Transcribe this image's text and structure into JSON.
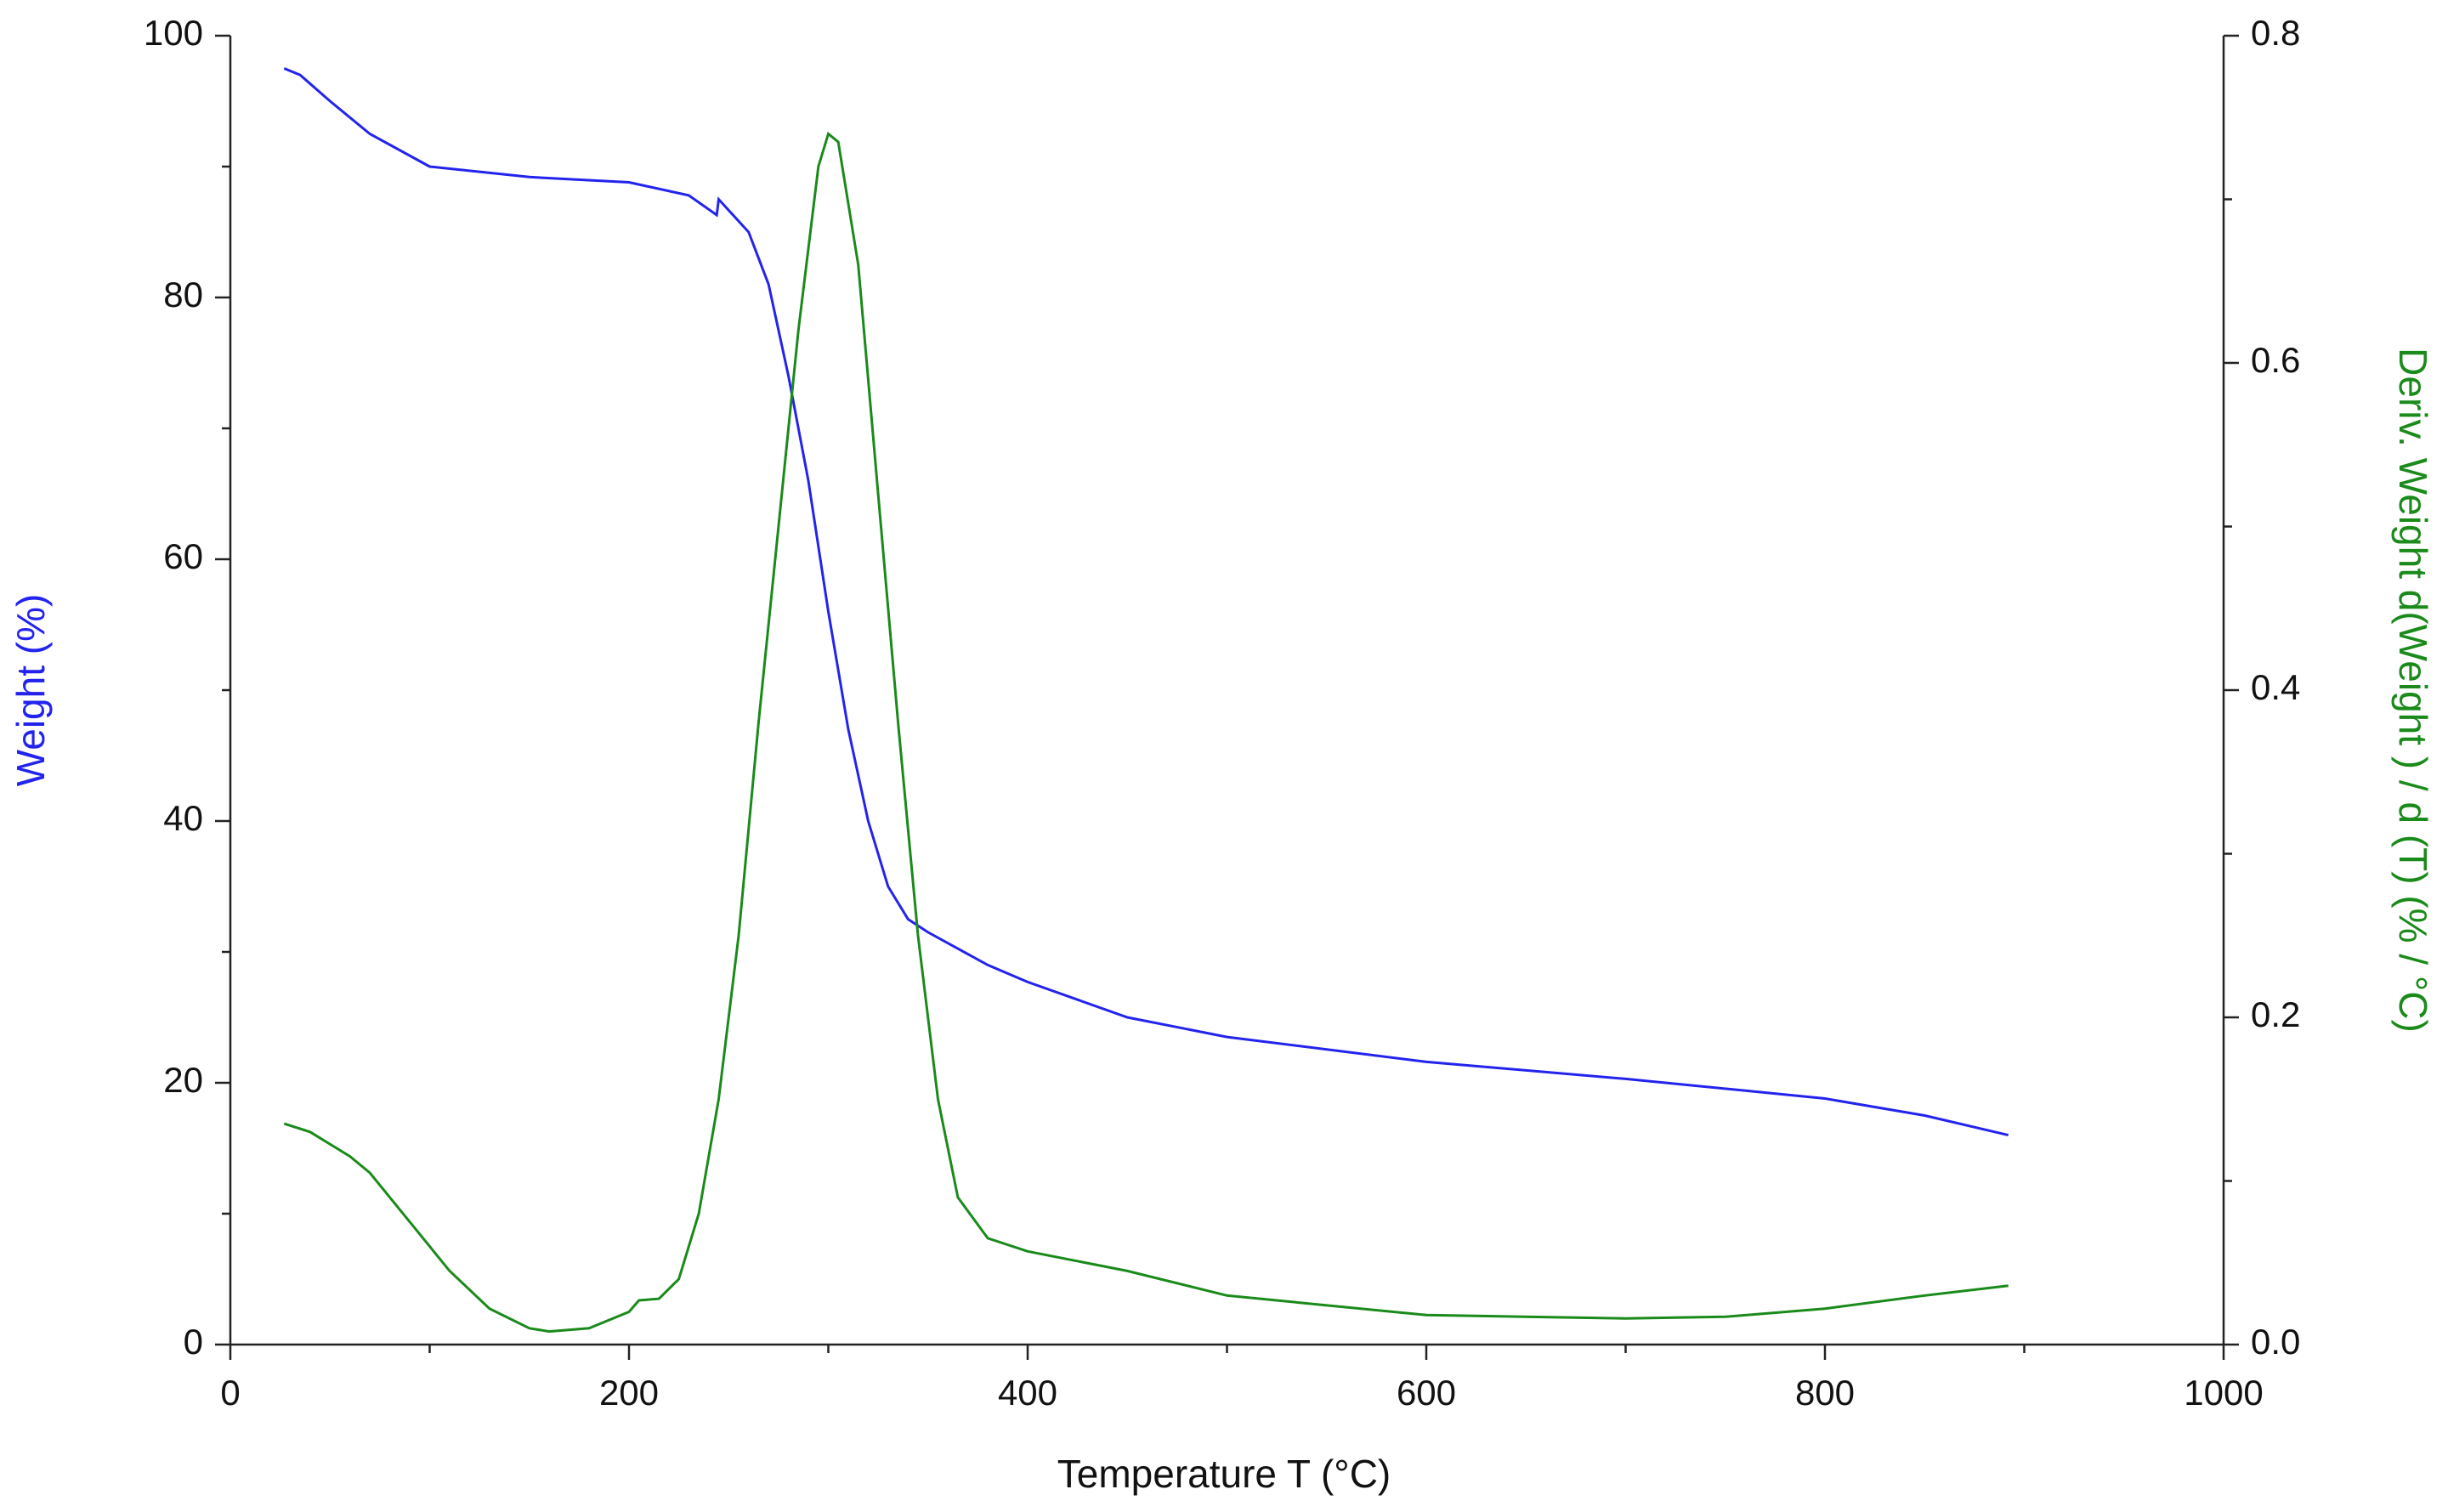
{
  "chart_data": {
    "type": "line",
    "xlabel": "Temperature  T  (°C)",
    "ylabel": "Weight  (%)",
    "y2label": "Deriv. Weight d(Weight ) / d (T)  (% / °C)",
    "xlim": [
      0,
      1000
    ],
    "xticks": [
      0,
      200,
      400,
      600,
      800,
      1000
    ],
    "xminorticks": [
      100,
      300,
      500,
      700,
      900
    ],
    "ylim": [
      0,
      100
    ],
    "yticks": [
      0,
      20,
      40,
      60,
      80,
      100
    ],
    "yminorticks": [
      10,
      30,
      50,
      70,
      90
    ],
    "y2lim": [
      0,
      0.8
    ],
    "y2ticks": [
      {
        "value": 0,
        "label": "0.0"
      },
      0.2,
      0.4,
      0.6,
      0.8
    ],
    "y2minorticks": [
      0.1,
      0.3,
      0.5,
      0.7
    ],
    "ylabel_color": "#2323ee",
    "y2label_color": "#1a8a1a",
    "series": [
      {
        "name": "Weight",
        "color": "#2323ee",
        "x": [
          27,
          35,
          50,
          70,
          100,
          150,
          200,
          230,
          244,
          245,
          260,
          270,
          280,
          290,
          300,
          310,
          320,
          330,
          340,
          350,
          380,
          400,
          450,
          500,
          600,
          700,
          800,
          850,
          892
        ],
        "values": [
          97.5,
          97,
          95,
          92.5,
          90,
          89.2,
          88.8,
          87.8,
          86.3,
          87.5,
          85,
          81,
          74,
          66,
          56,
          47,
          40,
          35,
          32.5,
          31.5,
          29,
          27.7,
          25,
          23.5,
          21.6,
          20.3,
          18.8,
          17.5,
          16
        ]
      },
      {
        "name": "Deriv. Weight",
        "color": "#1a8a1a",
        "axis": "y2",
        "x": [
          27,
          40,
          60,
          70,
          90,
          110,
          130,
          150,
          160,
          180,
          200,
          205,
          215,
          225,
          235,
          245,
          255,
          265,
          275,
          285,
          295,
          300,
          305,
          315,
          325,
          335,
          345,
          355,
          365,
          380,
          400,
          450,
          500,
          600,
          700,
          750,
          800,
          850,
          892
        ],
        "values": [
          0.135,
          0.13,
          0.115,
          0.105,
          0.075,
          0.045,
          0.022,
          0.01,
          0.008,
          0.01,
          0.02,
          0.027,
          0.028,
          0.04,
          0.08,
          0.15,
          0.25,
          0.38,
          0.5,
          0.62,
          0.72,
          0.74,
          0.735,
          0.66,
          0.52,
          0.38,
          0.25,
          0.15,
          0.09,
          0.065,
          0.057,
          0.045,
          0.03,
          0.018,
          0.016,
          0.017,
          0.022,
          0.03,
          0.036
        ]
      }
    ]
  }
}
